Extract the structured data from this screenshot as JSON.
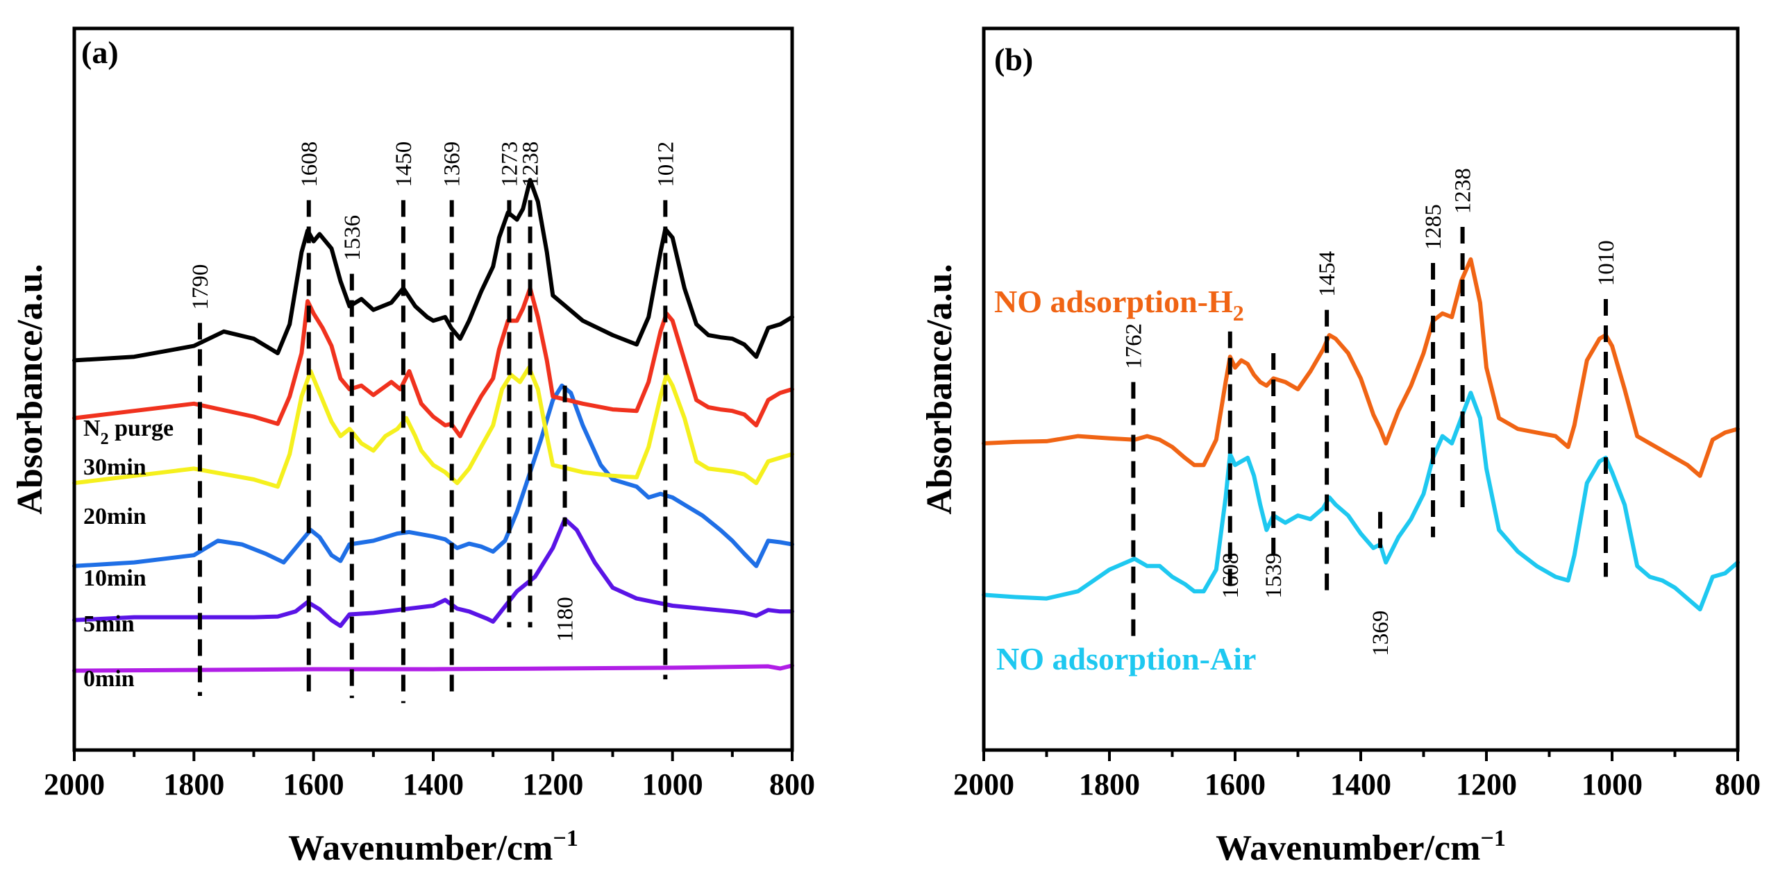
{
  "chart_data": [
    {
      "type": "line",
      "panel_label": "(a)",
      "xlabel": "Wavenumber/cm",
      "xlabel_sup": "−1",
      "ylabel": "Absorbance/a.u.",
      "xlim": [
        2000,
        800
      ],
      "ylim": [
        0,
        10
      ],
      "xticks": [
        2000,
        1800,
        1600,
        1400,
        1200,
        1000,
        800
      ],
      "xtick_labels": [
        "2000",
        "1800",
        "1600",
        "1400",
        "1200",
        "1000",
        "800"
      ],
      "series": [
        {
          "name": "0min",
          "label_main": "0min",
          "label_sub": "",
          "label_rest": "",
          "color": "#b01ee6",
          "x": [
            2000,
            1800,
            1600,
            1400,
            1200,
            1000,
            840,
            820,
            800
          ],
          "y": [
            1.1,
            1.11,
            1.12,
            1.12,
            1.13,
            1.14,
            1.16,
            1.13,
            1.17
          ]
        },
        {
          "name": "5min",
          "label_main": "5min",
          "label_sub": "",
          "label_rest": "",
          "color": "#5a14e6",
          "x": [
            2000,
            1900,
            1700,
            1660,
            1630,
            1610,
            1590,
            1570,
            1555,
            1540,
            1500,
            1450,
            1400,
            1380,
            1360,
            1340,
            1310,
            1300,
            1260,
            1230,
            1200,
            1180,
            1160,
            1130,
            1100,
            1060,
            1030,
            1000,
            950,
            900,
            880,
            860,
            840,
            820,
            800
          ],
          "y": [
            1.8,
            1.84,
            1.84,
            1.85,
            1.92,
            2.05,
            1.95,
            1.8,
            1.72,
            1.88,
            1.9,
            1.95,
            2.0,
            2.08,
            1.96,
            1.92,
            1.82,
            1.78,
            2.2,
            2.4,
            2.8,
            3.2,
            3.05,
            2.6,
            2.25,
            2.1,
            2.05,
            2.0,
            1.96,
            1.92,
            1.9,
            1.86,
            1.94,
            1.92,
            1.92
          ]
        },
        {
          "name": "10min",
          "label_main": "10min",
          "label_sub": "",
          "label_rest": "",
          "color": "#1f6fe6",
          "x": [
            2000,
            1900,
            1800,
            1760,
            1720,
            1680,
            1650,
            1620,
            1605,
            1590,
            1570,
            1555,
            1540,
            1500,
            1460,
            1440,
            1400,
            1380,
            1360,
            1340,
            1320,
            1300,
            1280,
            1260,
            1240,
            1220,
            1200,
            1185,
            1170,
            1150,
            1120,
            1100,
            1060,
            1040,
            1020,
            1000,
            980,
            950,
            920,
            900,
            880,
            860,
            840,
            820,
            800
          ],
          "y": [
            2.55,
            2.6,
            2.7,
            2.9,
            2.85,
            2.72,
            2.6,
            2.9,
            3.05,
            2.95,
            2.7,
            2.62,
            2.85,
            2.9,
            3.0,
            3.02,
            2.96,
            2.92,
            2.8,
            2.86,
            2.82,
            2.75,
            2.9,
            3.3,
            3.8,
            4.3,
            4.85,
            5.05,
            4.95,
            4.5,
            3.95,
            3.75,
            3.65,
            3.5,
            3.55,
            3.5,
            3.4,
            3.25,
            3.05,
            2.9,
            2.72,
            2.55,
            2.9,
            2.88,
            2.85
          ]
        },
        {
          "name": "20min",
          "label_main": "20min",
          "label_sub": "",
          "label_rest": "",
          "color": "#f5f01e",
          "x": [
            2000,
            1900,
            1800,
            1700,
            1660,
            1640,
            1620,
            1605,
            1590,
            1570,
            1555,
            1540,
            1520,
            1500,
            1480,
            1460,
            1445,
            1430,
            1420,
            1400,
            1380,
            1360,
            1340,
            1320,
            1300,
            1285,
            1270,
            1255,
            1240,
            1225,
            1210,
            1200,
            1150,
            1100,
            1060,
            1040,
            1020,
            1010,
            1000,
            980,
            960,
            940,
            920,
            900,
            880,
            860,
            840,
            820,
            800
          ],
          "y": [
            3.7,
            3.8,
            3.9,
            3.75,
            3.65,
            4.1,
            4.9,
            5.25,
            4.95,
            4.55,
            4.35,
            4.45,
            4.25,
            4.15,
            4.35,
            4.45,
            4.6,
            4.35,
            4.15,
            3.95,
            3.85,
            3.7,
            3.9,
            4.2,
            4.5,
            5.0,
            5.2,
            5.1,
            5.3,
            5.0,
            4.35,
            3.95,
            3.85,
            3.8,
            3.78,
            4.2,
            4.9,
            5.2,
            5.05,
            4.6,
            4.0,
            3.9,
            3.88,
            3.86,
            3.82,
            3.7,
            4.0,
            4.05,
            4.1
          ]
        },
        {
          "name": "30min",
          "label_main": "30min",
          "label_sub": "",
          "label_rest": "",
          "color": "#f0321e",
          "x": [
            2000,
            1900,
            1800,
            1700,
            1660,
            1640,
            1620,
            1610,
            1600,
            1585,
            1570,
            1555,
            1540,
            1520,
            1500,
            1470,
            1455,
            1440,
            1420,
            1400,
            1380,
            1370,
            1355,
            1340,
            1320,
            1300,
            1290,
            1275,
            1260,
            1250,
            1238,
            1225,
            1210,
            1200,
            1150,
            1100,
            1060,
            1040,
            1020,
            1010,
            1000,
            980,
            960,
            940,
            920,
            900,
            880,
            860,
            840,
            820,
            800
          ],
          "y": [
            4.6,
            4.7,
            4.8,
            4.62,
            4.52,
            4.9,
            5.5,
            6.22,
            6.05,
            5.85,
            5.6,
            5.15,
            5.0,
            5.05,
            4.92,
            5.1,
            5.0,
            5.25,
            4.8,
            4.62,
            4.5,
            4.52,
            4.35,
            4.6,
            4.9,
            5.15,
            5.55,
            5.95,
            5.95,
            6.12,
            6.4,
            6.0,
            5.4,
            4.9,
            4.8,
            4.72,
            4.7,
            5.1,
            5.8,
            6.05,
            5.95,
            5.4,
            4.85,
            4.75,
            4.72,
            4.7,
            4.65,
            4.5,
            4.85,
            4.95,
            5.0
          ]
        },
        {
          "name": "N2 purge",
          "label_main": "N",
          "label_sub": "2",
          "label_rest": " purge",
          "color": "#000000",
          "x": [
            2000,
            1900,
            1800,
            1750,
            1700,
            1660,
            1640,
            1620,
            1610,
            1600,
            1590,
            1570,
            1555,
            1540,
            1520,
            1500,
            1470,
            1450,
            1430,
            1410,
            1400,
            1380,
            1370,
            1355,
            1340,
            1320,
            1300,
            1290,
            1275,
            1260,
            1250,
            1238,
            1225,
            1210,
            1200,
            1150,
            1100,
            1060,
            1040,
            1020,
            1012,
            1000,
            980,
            960,
            940,
            920,
            900,
            880,
            860,
            840,
            820,
            800
          ],
          "y": [
            5.4,
            5.45,
            5.6,
            5.8,
            5.7,
            5.5,
            5.9,
            6.9,
            7.2,
            7.05,
            7.15,
            6.95,
            6.5,
            6.15,
            6.25,
            6.1,
            6.2,
            6.4,
            6.15,
            6.0,
            5.95,
            6.0,
            5.85,
            5.7,
            5.95,
            6.35,
            6.7,
            7.1,
            7.45,
            7.35,
            7.5,
            7.9,
            7.6,
            6.9,
            6.3,
            5.95,
            5.75,
            5.62,
            6.0,
            6.9,
            7.22,
            7.1,
            6.4,
            5.9,
            5.75,
            5.72,
            5.7,
            5.62,
            5.45,
            5.85,
            5.9,
            6.0
          ]
        }
      ],
      "peaks": [
        {
          "x": 1790,
          "label": "1790",
          "y_top": 5.92,
          "y_bottom": 0.75,
          "label_y": 6.1
        },
        {
          "x": 1608,
          "label": "1608",
          "y_top": 7.62,
          "y_bottom": 0.72,
          "label_y": 7.8
        },
        {
          "x": 1536,
          "label": "1536",
          "y_top": 6.6,
          "y_bottom": 0.72,
          "label_y": 6.78
        },
        {
          "x": 1450,
          "label": "1450",
          "y_top": 7.62,
          "y_bottom": 0.65,
          "label_y": 7.8
        },
        {
          "x": 1369,
          "label": "1369",
          "y_top": 7.62,
          "y_bottom": 0.72,
          "label_y": 7.8
        },
        {
          "x": 1273,
          "label": "1273",
          "y_top": 7.62,
          "y_bottom": 1.7,
          "label_y": 7.8
        },
        {
          "x": 1238,
          "label": "1238",
          "y_top": 7.62,
          "y_bottom": 1.7,
          "label_y": 7.8
        },
        {
          "x": 1180,
          "label": "1180",
          "y_top": 5.05,
          "y_bottom": 3.1,
          "label_y": 1.5
        },
        {
          "x": 1012,
          "label": "1012",
          "y_top": 7.62,
          "y_bottom": 0.98,
          "label_y": 7.8
        }
      ]
    },
    {
      "type": "line",
      "panel_label": "(b)",
      "xlabel": "Wavenumber/cm",
      "xlabel_sup": "−1",
      "ylabel": "Absorbance/a.u.",
      "xlim": [
        2000,
        800
      ],
      "ylim": [
        0,
        10
      ],
      "xticks": [
        2000,
        1800,
        1600,
        1400,
        1200,
        1000,
        800
      ],
      "xtick_labels": [
        "2000",
        "1800",
        "1600",
        "1400",
        "1200",
        "1000",
        "800"
      ],
      "series": [
        {
          "name": "NO adsorption-Air",
          "label_main": "NO adsorption-Air",
          "label_sub": "",
          "color": "#1ec8f0",
          "x": [
            2000,
            1950,
            1900,
            1850,
            1800,
            1760,
            1740,
            1720,
            1700,
            1680,
            1665,
            1650,
            1630,
            1615,
            1608,
            1600,
            1590,
            1580,
            1570,
            1560,
            1550,
            1539,
            1520,
            1500,
            1480,
            1460,
            1450,
            1440,
            1420,
            1400,
            1380,
            1369,
            1360,
            1340,
            1320,
            1300,
            1285,
            1270,
            1255,
            1240,
            1225,
            1210,
            1200,
            1180,
            1150,
            1120,
            1090,
            1070,
            1060,
            1040,
            1020,
            1010,
            1000,
            980,
            960,
            940,
            920,
            900,
            880,
            860,
            840,
            820,
            800
          ],
          "y": [
            2.15,
            2.12,
            2.1,
            2.2,
            2.5,
            2.65,
            2.55,
            2.55,
            2.4,
            2.3,
            2.2,
            2.2,
            2.5,
            3.5,
            4.1,
            3.95,
            4.0,
            4.05,
            3.8,
            3.4,
            3.05,
            3.25,
            3.15,
            3.25,
            3.2,
            3.35,
            3.5,
            3.4,
            3.25,
            3.0,
            2.8,
            2.85,
            2.6,
            2.95,
            3.2,
            3.55,
            4.05,
            4.35,
            4.25,
            4.6,
            4.95,
            4.6,
            3.9,
            3.05,
            2.75,
            2.55,
            2.4,
            2.35,
            2.7,
            3.7,
            4.0,
            4.05,
            3.85,
            3.4,
            2.55,
            2.4,
            2.35,
            2.25,
            2.1,
            1.95,
            2.4,
            2.45,
            2.6
          ]
        },
        {
          "name": "NO adsorption-H2",
          "label_main": "NO adsorption-H",
          "label_sub": "2",
          "color": "#f06414",
          "x": [
            2000,
            1950,
            1900,
            1850,
            1800,
            1760,
            1740,
            1720,
            1700,
            1680,
            1665,
            1650,
            1630,
            1615,
            1608,
            1600,
            1590,
            1580,
            1570,
            1560,
            1550,
            1539,
            1520,
            1500,
            1480,
            1460,
            1450,
            1440,
            1420,
            1400,
            1380,
            1369,
            1360,
            1340,
            1320,
            1300,
            1285,
            1270,
            1255,
            1240,
            1225,
            1210,
            1200,
            1180,
            1150,
            1120,
            1090,
            1070,
            1060,
            1040,
            1020,
            1010,
            1000,
            980,
            960,
            940,
            920,
            900,
            880,
            860,
            840,
            820,
            800
          ],
          "y": [
            4.25,
            4.27,
            4.28,
            4.35,
            4.32,
            4.3,
            4.35,
            4.3,
            4.2,
            4.05,
            3.95,
            3.95,
            4.3,
            5.1,
            5.45,
            5.3,
            5.4,
            5.35,
            5.2,
            5.1,
            5.05,
            5.15,
            5.1,
            5.0,
            5.25,
            5.55,
            5.75,
            5.7,
            5.5,
            5.15,
            4.65,
            4.45,
            4.25,
            4.7,
            5.05,
            5.5,
            5.95,
            6.05,
            6.0,
            6.5,
            6.8,
            6.2,
            5.3,
            4.6,
            4.45,
            4.4,
            4.35,
            4.2,
            4.5,
            5.4,
            5.7,
            5.75,
            5.6,
            5.0,
            4.35,
            4.25,
            4.15,
            4.05,
            3.95,
            3.8,
            4.3,
            4.4,
            4.45
          ]
        }
      ],
      "peaks": [
        {
          "x": 1762,
          "label": "1762",
          "y_top": 5.1,
          "y_bottom": 1.5,
          "label_y": 5.28
        },
        {
          "x": 1608,
          "label": "1608",
          "y_top": 5.8,
          "y_bottom": 2.3,
          "label_y": 2.1
        },
        {
          "x": 1539,
          "label": "1539",
          "y_top": 5.5,
          "y_bottom": 2.6,
          "label_y": 2.1
        },
        {
          "x": 1454,
          "label": "1454",
          "y_top": 6.1,
          "y_bottom": 2.2,
          "label_y": 6.28
        },
        {
          "x": 1369,
          "label": "1369",
          "y_top": 3.3,
          "y_bottom": 2.8,
          "label_y": 1.3
        },
        {
          "x": 1285,
          "label": "1285",
          "y_top": 6.75,
          "y_bottom": 2.95,
          "label_y": 6.93
        },
        {
          "x": 1238,
          "label": "1238",
          "y_top": 7.25,
          "y_bottom": 3.35,
          "label_y": 7.43
        },
        {
          "x": 1010,
          "label": "1010",
          "y_top": 6.25,
          "y_bottom": 2.4,
          "label_y": 6.43
        }
      ]
    }
  ]
}
